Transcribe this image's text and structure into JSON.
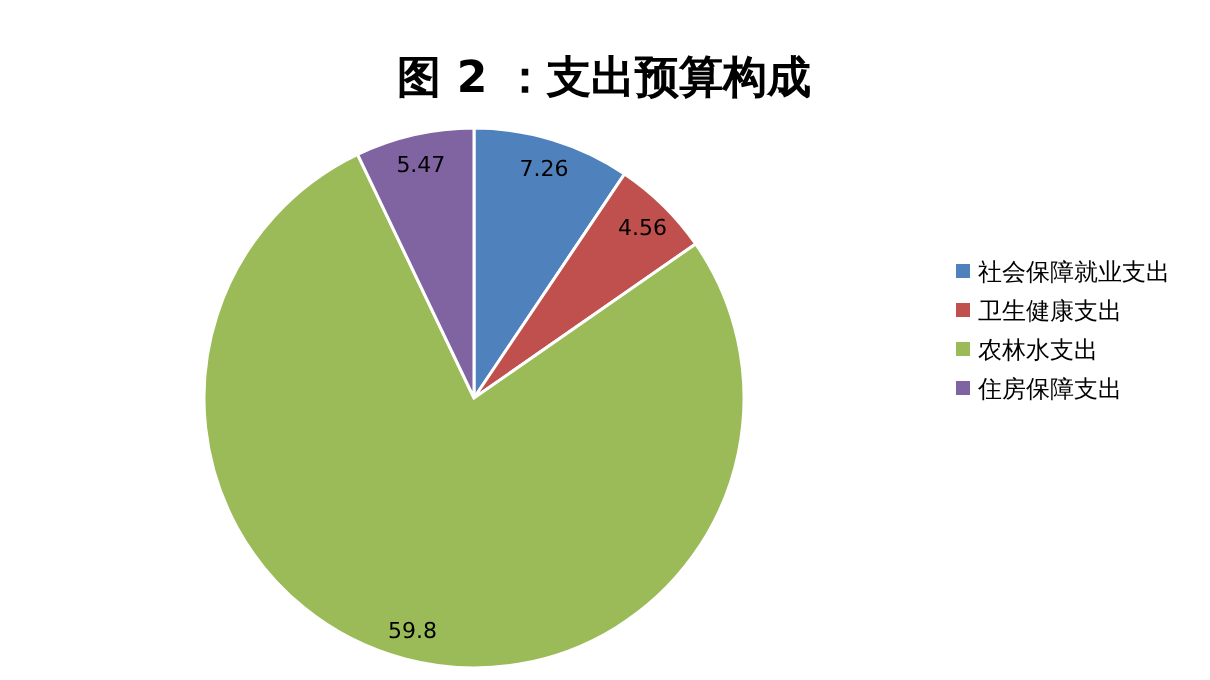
{
  "chart_data": {
    "type": "pie",
    "title": "图 2 ：支出预算构成",
    "categories": [
      "社会保障就业支出",
      "卫生健康支出",
      "农林水支出",
      "住房保障支出"
    ],
    "values": [
      7.26,
      4.56,
      59.8,
      5.47
    ],
    "colors": [
      "#4f81bd",
      "#c0504d",
      "#9bbb59",
      "#8064a2"
    ],
    "data_labels": true,
    "legend": "right"
  }
}
